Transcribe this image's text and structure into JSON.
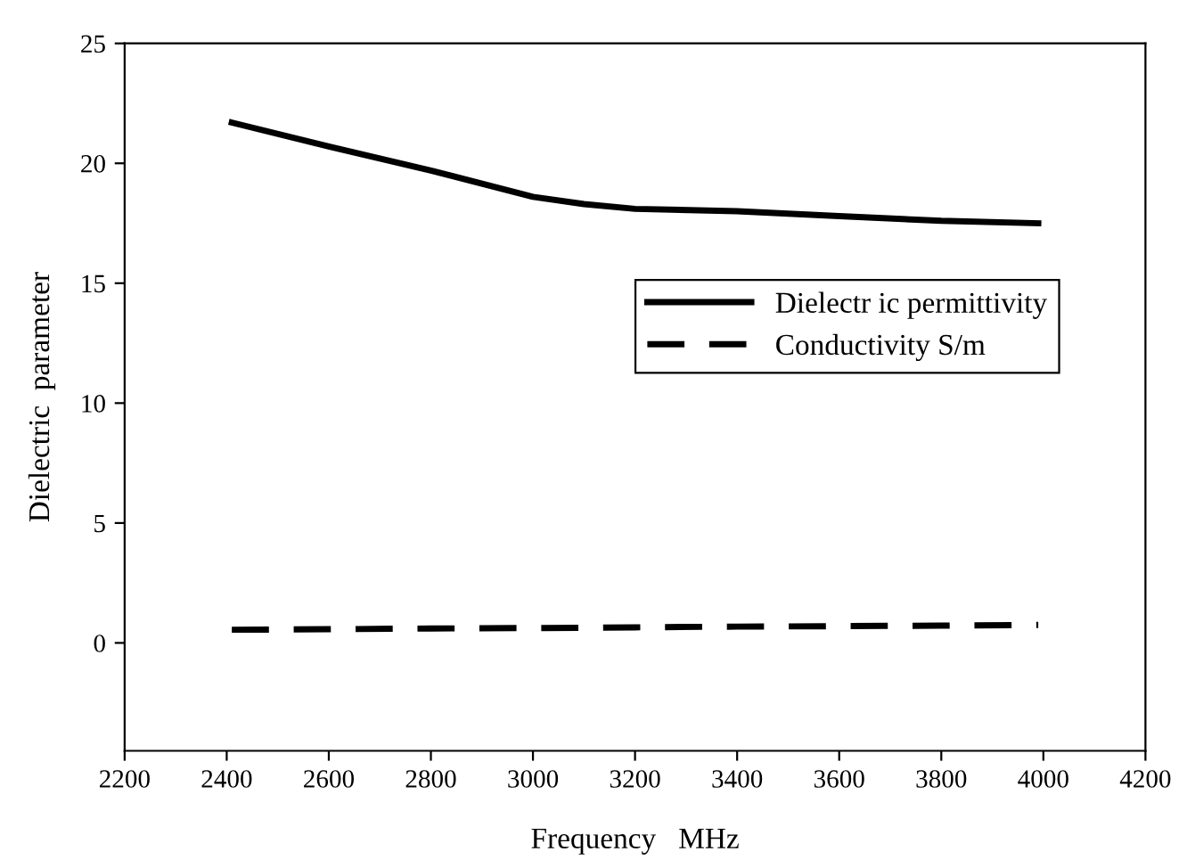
{
  "chart_data": {
    "type": "line",
    "xlabel": "Frequency   MHz",
    "ylabel": "Dielectric  parameter",
    "x": [
      2410,
      2600,
      2800,
      3000,
      3100,
      3200,
      3400,
      3600,
      3800,
      3990
    ],
    "series": [
      {
        "name": "Dielectr ic permittivity",
        "color": "#000000",
        "line_style": "solid",
        "values": [
          21.7,
          20.7,
          19.7,
          18.6,
          18.3,
          18.1,
          18.0,
          17.8,
          17.6,
          17.5
        ]
      },
      {
        "name": "Conductivity S/m",
        "color": "#000000",
        "line_style": "dashed",
        "values": [
          0.55,
          0.57,
          0.6,
          0.62,
          0.63,
          0.65,
          0.68,
          0.7,
          0.72,
          0.75
        ]
      }
    ],
    "xlim": [
      2200,
      4200
    ],
    "xticks": [
      2200,
      2400,
      2600,
      2800,
      3000,
      3200,
      3400,
      3600,
      3800,
      4000,
      4200
    ],
    "ylim": [
      -4.5,
      25
    ],
    "yticks": [
      0,
      5,
      10,
      15,
      20,
      25
    ],
    "grid": false,
    "legend": "right",
    "marker": "none"
  }
}
